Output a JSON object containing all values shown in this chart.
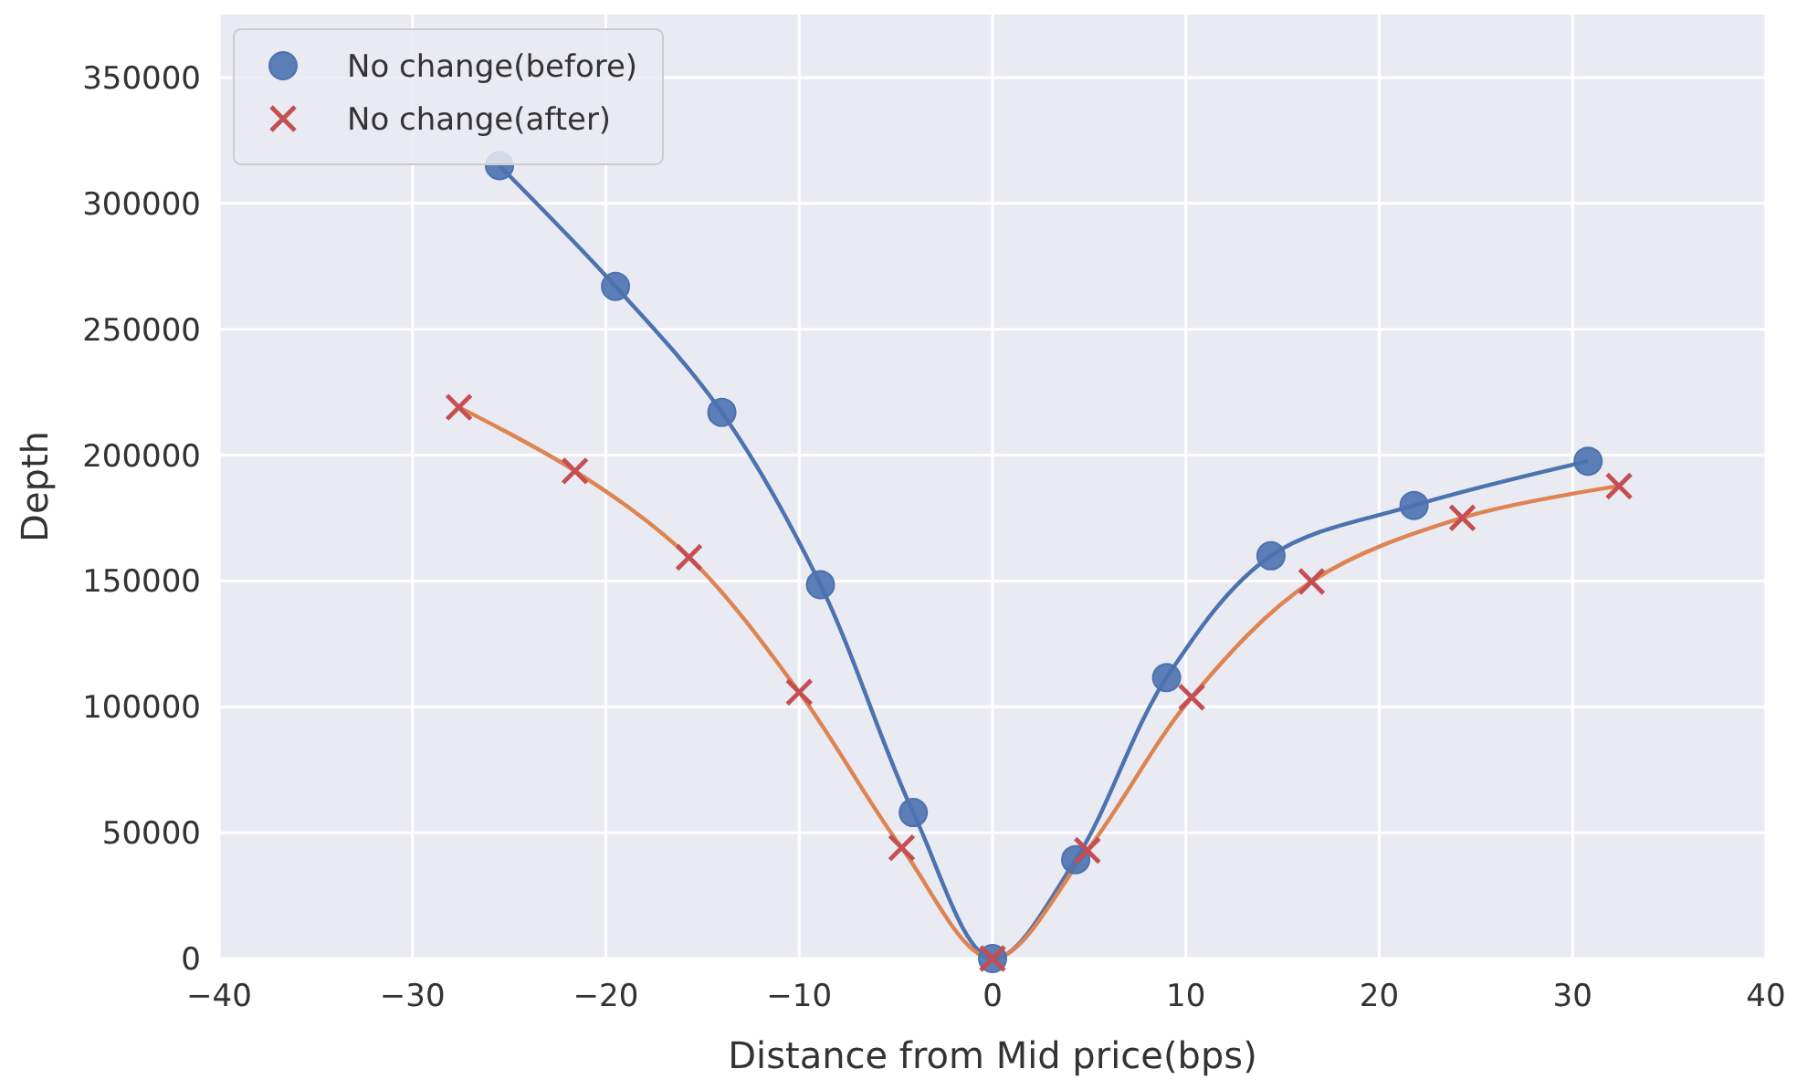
{
  "chart_data": {
    "type": "scatter",
    "xlabel": "Distance from Mid price(bps)",
    "ylabel": "Depth",
    "xlim": [
      -40,
      40
    ],
    "ylim": [
      0,
      375000
    ],
    "xticks": [
      {
        "value": -40,
        "label": "−40"
      },
      {
        "value": -30,
        "label": "−30"
      },
      {
        "value": -20,
        "label": "−20"
      },
      {
        "value": -10,
        "label": "−10"
      },
      0,
      10,
      20,
      30,
      40
    ],
    "yticks": [
      0,
      50000,
      100000,
      150000,
      200000,
      250000,
      300000,
      350000
    ],
    "grid": true,
    "legend": "top left",
    "series": [
      {
        "name": "No change(before)",
        "type": "scatter",
        "marker": "circle",
        "color": "#4c72b0",
        "x": [
          -25.5,
          -19.5,
          -14.0,
          -8.9,
          -4.1,
          0,
          4.3,
          9.0,
          14.4,
          21.8,
          30.8
        ],
        "values": [
          315000,
          267000,
          217000,
          148500,
          58000,
          0,
          39300,
          111600,
          160000,
          180000,
          197600
        ]
      },
      {
        "name": "No change(after)",
        "type": "scatter",
        "marker": "cross",
        "color": "#c44e52",
        "x": [
          -27.6,
          -21.6,
          -15.7,
          -10.0,
          -4.7,
          0,
          4.9,
          10.3,
          16.5,
          24.3,
          32.4
        ],
        "values": [
          219000,
          193700,
          159400,
          105800,
          44000,
          0,
          43000,
          103800,
          149800,
          175100,
          187700
        ]
      },
      {
        "type": "line",
        "marker": "none",
        "color": "#4c72b0",
        "x": [
          -25.5,
          -19.5,
          -14.0,
          -8.9,
          -4.1,
          0,
          4.3,
          9.0,
          14.4,
          21.8,
          30.8
        ],
        "values": [
          315000,
          267000,
          217000,
          148500,
          58000,
          0,
          39300,
          111600,
          160000,
          180000,
          197600
        ]
      },
      {
        "type": "line",
        "marker": "none",
        "color": "#dd8452",
        "x": [
          -27.6,
          -21.6,
          -15.7,
          -10.0,
          -4.7,
          0,
          4.9,
          10.3,
          16.5,
          24.3,
          32.4
        ],
        "values": [
          219000,
          193700,
          159400,
          105800,
          44000,
          0,
          43000,
          103800,
          149800,
          175100,
          187700
        ]
      }
    ]
  }
}
